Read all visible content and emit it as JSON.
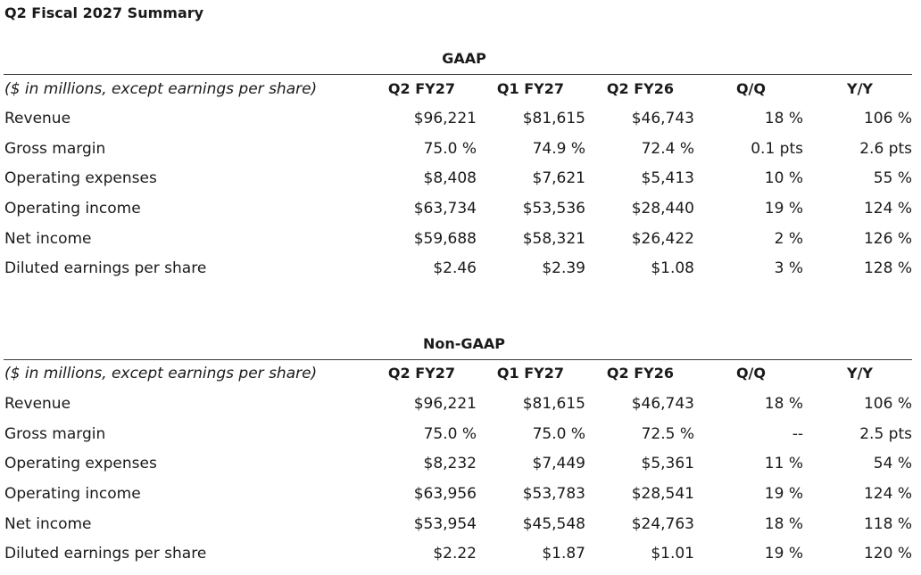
{
  "title": "Q2 Fiscal 2027 Summary",
  "sections": [
    {
      "name": "GAAP",
      "columns": {
        "label": "($ in millions, except earnings per share)",
        "c1": "Q2 FY27",
        "c2": "Q1 FY27",
        "c3": "Q2 FY26",
        "c4": "Q/Q",
        "c5": "Y/Y"
      },
      "rows": [
        {
          "label": "Revenue",
          "c1": "$96,221",
          "c2": "$81,615",
          "c3": "$46,743",
          "c4": "18 %",
          "c5": "106 %"
        },
        {
          "label": "Gross margin",
          "c1": "75.0 %",
          "c2": "74.9 %",
          "c3": "72.4 %",
          "c4": "0.1 pts",
          "c5": "2.6 pts"
        },
        {
          "label": "Operating expenses",
          "c1": "$8,408",
          "c2": "$7,621",
          "c3": "$5,413",
          "c4": "10 %",
          "c5": "55 %"
        },
        {
          "label": "Operating income",
          "c1": "$63,734",
          "c2": "$53,536",
          "c3": "$28,440",
          "c4": "19 %",
          "c5": "124 %"
        },
        {
          "label": "Net income",
          "c1": "$59,688",
          "c2": "$58,321",
          "c3": "$26,422",
          "c4": "2 %",
          "c5": "126 %"
        },
        {
          "label": "Diluted earnings per share",
          "c1": "$2.46",
          "c2": "$2.39",
          "c3": "$1.08",
          "c4": "3 %",
          "c5": "128 %"
        }
      ]
    },
    {
      "name": "Non-GAAP",
      "columns": {
        "label": "($ in millions, except earnings per share)",
        "c1": "Q2 FY27",
        "c2": "Q1 FY27",
        "c3": "Q2 FY26",
        "c4": "Q/Q",
        "c5": "Y/Y"
      },
      "rows": [
        {
          "label": "Revenue",
          "c1": "$96,221",
          "c2": "$81,615",
          "c3": "$46,743",
          "c4": "18 %",
          "c5": "106 %"
        },
        {
          "label": "Gross margin",
          "c1": "75.0 %",
          "c2": "75.0 %",
          "c3": "72.5 %",
          "c4": "--",
          "c5": "2.5 pts"
        },
        {
          "label": "Operating expenses",
          "c1": "$8,232",
          "c2": "$7,449",
          "c3": "$5,361",
          "c4": "11 %",
          "c5": "54 %"
        },
        {
          "label": "Operating income",
          "c1": "$63,956",
          "c2": "$53,783",
          "c3": "$28,541",
          "c4": "19 %",
          "c5": "124 %"
        },
        {
          "label": "Net income",
          "c1": "$53,954",
          "c2": "$45,548",
          "c3": "$24,763",
          "c4": "18 %",
          "c5": "118 %"
        },
        {
          "label": "Diluted earnings per share",
          "c1": "$2.22",
          "c2": "$1.87",
          "c3": "$1.01",
          "c4": "19 %",
          "c5": "120 %"
        }
      ]
    }
  ]
}
